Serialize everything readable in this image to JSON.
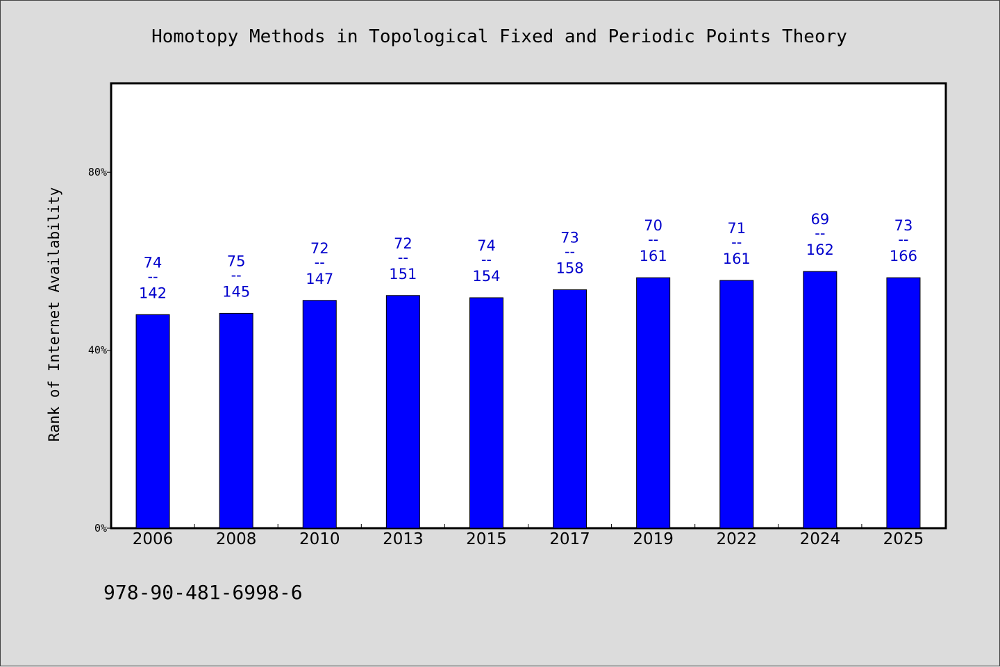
{
  "chart_data": {
    "type": "bar",
    "title": "Homotopy Methods in Topological Fixed and Periodic Points Theory",
    "xlabel": "",
    "ylabel": "Rank of Internet Availability",
    "ylim": [
      0,
      100
    ],
    "yticks": [
      0,
      40,
      80
    ],
    "ytick_labels": [
      "0%",
      "40%",
      "80%"
    ],
    "categories": [
      "2006",
      "2008",
      "2010",
      "2013",
      "2015",
      "2017",
      "2019",
      "2022",
      "2024",
      "2025"
    ],
    "values": [
      48,
      48.3,
      51.2,
      52.3,
      51.8,
      53.6,
      56.3,
      55.7,
      57.7,
      56.3
    ],
    "annotations": [
      {
        "top": "74",
        "sep": "--",
        "bottom": "142"
      },
      {
        "top": "75",
        "sep": "--",
        "bottom": "145"
      },
      {
        "top": "72",
        "sep": "--",
        "bottom": "147"
      },
      {
        "top": "72",
        "sep": "--",
        "bottom": "151"
      },
      {
        "top": "74",
        "sep": "--",
        "bottom": "154"
      },
      {
        "top": "73",
        "sep": "--",
        "bottom": "158"
      },
      {
        "top": "70",
        "sep": "--",
        "bottom": "161"
      },
      {
        "top": "71",
        "sep": "--",
        "bottom": "161"
      },
      {
        "top": "69",
        "sep": "--",
        "bottom": "162"
      },
      {
        "top": "73",
        "sep": "--",
        "bottom": "166"
      }
    ],
    "bar_color": "#0000ff",
    "label_color": "#0000cc",
    "background": "#dcdcdc",
    "plot_background": "#ffffff",
    "grid": false,
    "legend": "none"
  },
  "footer_text": "978-90-481-6998-6"
}
